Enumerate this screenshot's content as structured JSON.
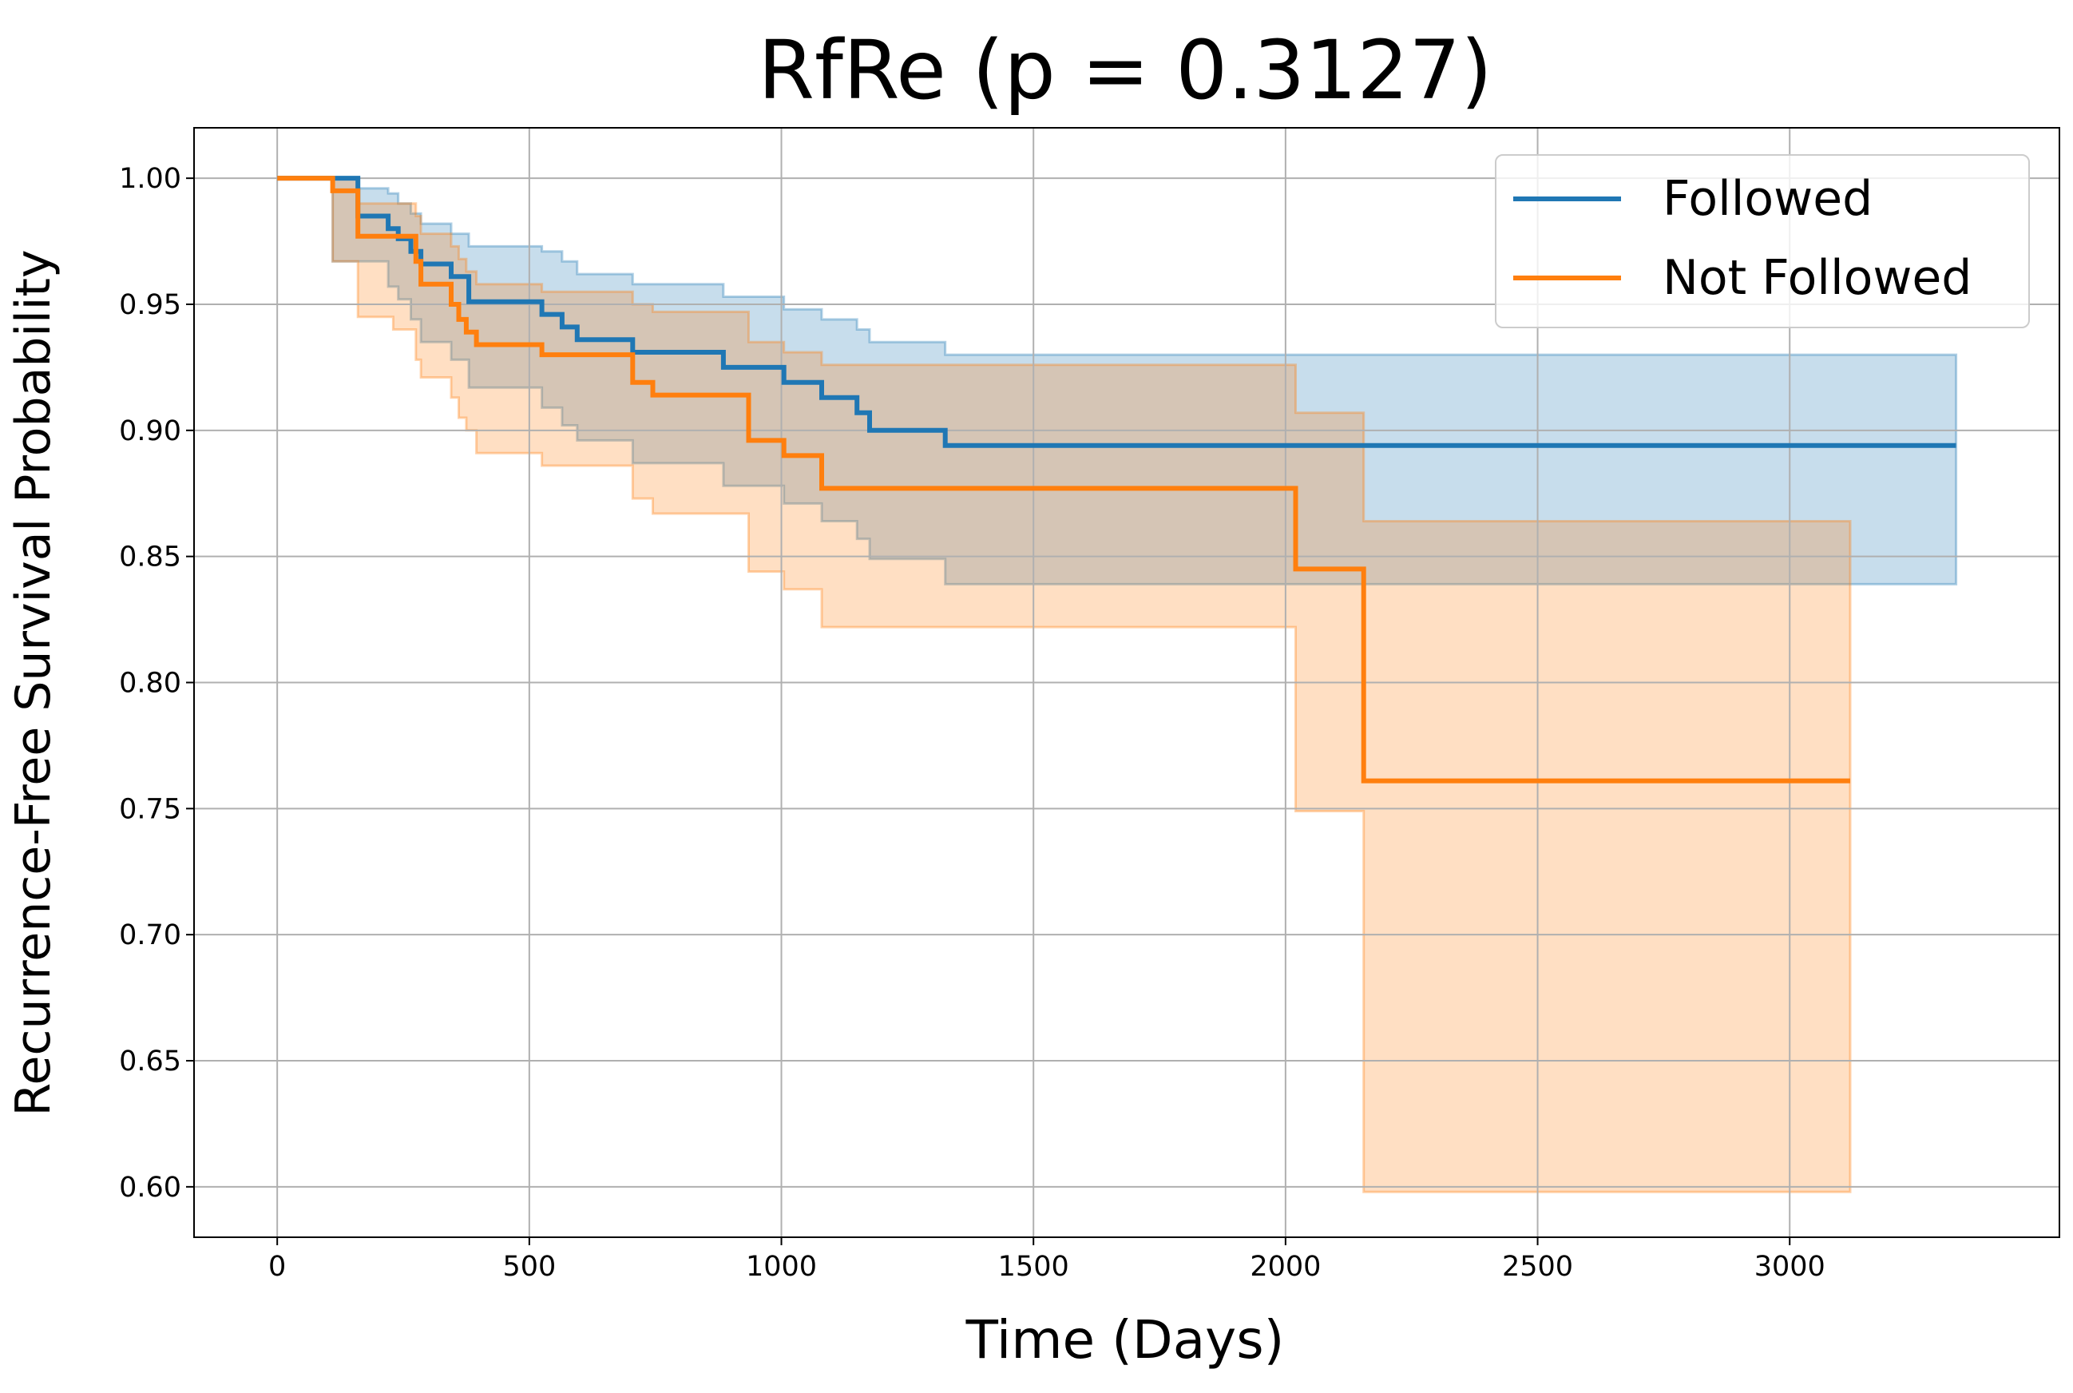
{
  "chart_data": {
    "type": "line",
    "title": "RfRe (p = 0.3127)",
    "xlabel": "Time (Days)",
    "ylabel": "Recurrence-Free Survival Probability",
    "xlim": [
      -165,
      3535
    ],
    "ylim": [
      0.58,
      1.02
    ],
    "xticks": [
      0,
      500,
      1000,
      1500,
      2000,
      2500,
      3000
    ],
    "yticks": [
      0.6,
      0.65,
      0.7,
      0.75,
      0.8,
      0.85,
      0.9,
      0.95,
      1.0
    ],
    "xtick_labels": [
      "0",
      "500",
      "1000",
      "1500",
      "2000",
      "2500",
      "3000"
    ],
    "ytick_labels": [
      "0.60",
      "0.65",
      "0.70",
      "0.75",
      "0.80",
      "0.85",
      "0.90",
      "0.95",
      "1.00"
    ],
    "grid": true,
    "legend_position": "top-right",
    "series": [
      {
        "name": "Followed",
        "color": "#1f77b4",
        "steps": [
          [
            0,
            1.0
          ],
          [
            160,
            0.985
          ],
          [
            220,
            0.98
          ],
          [
            240,
            0.976
          ],
          [
            265,
            0.971
          ],
          [
            285,
            0.966
          ],
          [
            345,
            0.961
          ],
          [
            380,
            0.951
          ],
          [
            525,
            0.946
          ],
          [
            565,
            0.941
          ],
          [
            595,
            0.936
          ],
          [
            705,
            0.931
          ],
          [
            885,
            0.925
          ],
          [
            1005,
            0.919
          ],
          [
            1080,
            0.913
          ],
          [
            1150,
            0.907
          ],
          [
            1175,
            0.9
          ],
          [
            1325,
            0.894
          ],
          [
            3330,
            0.894
          ]
        ],
        "ci_upper": [
          [
            0,
            1.0
          ],
          [
            160,
            0.996
          ],
          [
            220,
            0.994
          ],
          [
            240,
            0.99
          ],
          [
            265,
            0.986
          ],
          [
            285,
            0.982
          ],
          [
            345,
            0.978
          ],
          [
            380,
            0.973
          ],
          [
            525,
            0.971
          ],
          [
            565,
            0.967
          ],
          [
            595,
            0.962
          ],
          [
            705,
            0.958
          ],
          [
            885,
            0.953
          ],
          [
            1005,
            0.948
          ],
          [
            1080,
            0.944
          ],
          [
            1150,
            0.94
          ],
          [
            1175,
            0.935
          ],
          [
            1325,
            0.93
          ],
          [
            3330,
            0.93
          ]
        ],
        "ci_lower": [
          [
            0,
            1.0
          ],
          [
            110,
            0.967
          ],
          [
            160,
            0.967
          ],
          [
            220,
            0.957
          ],
          [
            240,
            0.952
          ],
          [
            265,
            0.944
          ],
          [
            285,
            0.935
          ],
          [
            345,
            0.928
          ],
          [
            380,
            0.917
          ],
          [
            525,
            0.909
          ],
          [
            565,
            0.902
          ],
          [
            595,
            0.896
          ],
          [
            705,
            0.887
          ],
          [
            885,
            0.878
          ],
          [
            1005,
            0.871
          ],
          [
            1080,
            0.864
          ],
          [
            1150,
            0.857
          ],
          [
            1175,
            0.849
          ],
          [
            1325,
            0.839
          ],
          [
            3330,
            0.839
          ]
        ]
      },
      {
        "name": "Not Followed",
        "color": "#ff7f0e",
        "steps": [
          [
            0,
            1.0
          ],
          [
            110,
            0.995
          ],
          [
            160,
            0.977
          ],
          [
            275,
            0.967
          ],
          [
            285,
            0.958
          ],
          [
            345,
            0.95
          ],
          [
            360,
            0.944
          ],
          [
            375,
            0.939
          ],
          [
            395,
            0.934
          ],
          [
            525,
            0.93
          ],
          [
            705,
            0.919
          ],
          [
            745,
            0.914
          ],
          [
            935,
            0.896
          ],
          [
            1005,
            0.89
          ],
          [
            1080,
            0.877
          ],
          [
            2020,
            0.845
          ],
          [
            2155,
            0.761
          ],
          [
            3120,
            0.761
          ]
        ],
        "ci_upper": [
          [
            0,
            1.0
          ],
          [
            110,
            1.0
          ],
          [
            160,
            0.99
          ],
          [
            275,
            0.985
          ],
          [
            285,
            0.978
          ],
          [
            345,
            0.973
          ],
          [
            360,
            0.968
          ],
          [
            375,
            0.963
          ],
          [
            395,
            0.958
          ],
          [
            525,
            0.955
          ],
          [
            705,
            0.95
          ],
          [
            745,
            0.947
          ],
          [
            935,
            0.935
          ],
          [
            1005,
            0.931
          ],
          [
            1080,
            0.926
          ],
          [
            2020,
            0.907
          ],
          [
            2155,
            0.864
          ],
          [
            3120,
            0.864
          ]
        ],
        "ci_lower": [
          [
            0,
            1.0
          ],
          [
            110,
            0.967
          ],
          [
            160,
            0.945
          ],
          [
            230,
            0.94
          ],
          [
            275,
            0.928
          ],
          [
            285,
            0.921
          ],
          [
            345,
            0.913
          ],
          [
            360,
            0.905
          ],
          [
            375,
            0.9
          ],
          [
            395,
            0.891
          ],
          [
            525,
            0.886
          ],
          [
            705,
            0.873
          ],
          [
            745,
            0.867
          ],
          [
            935,
            0.844
          ],
          [
            1005,
            0.837
          ],
          [
            1080,
            0.822
          ],
          [
            2020,
            0.749
          ],
          [
            2155,
            0.598
          ],
          [
            3120,
            0.598
          ]
        ]
      }
    ]
  }
}
